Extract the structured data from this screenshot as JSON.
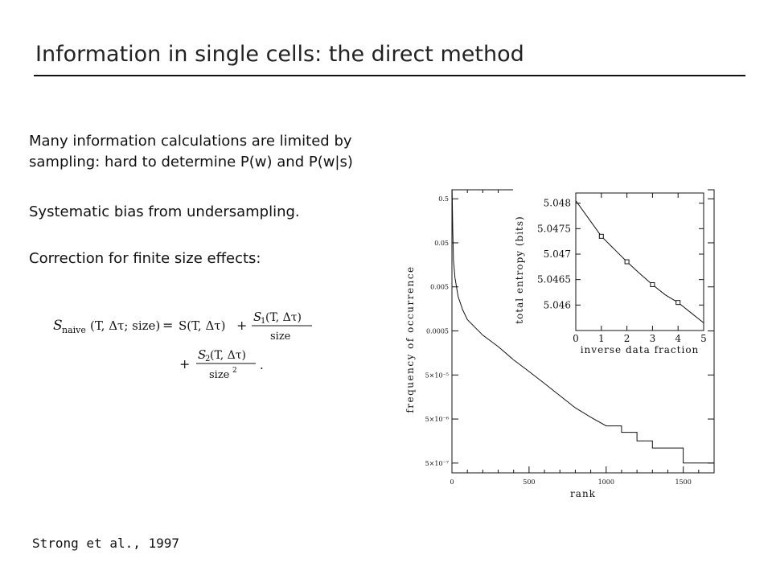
{
  "slide": {
    "title": "Information in single cells: the direct method",
    "paragraphs": [
      "Many information calculations are limited by",
      "sampling: hard to determine P(w) and P(w|s)",
      "Systematic bias from undersampling.",
      "Correction for finite size effects:"
    ],
    "citation": "Strong et al., 1997"
  },
  "equation": {
    "lhs_symbol": "S",
    "lhs_subscript": "naive",
    "lhs_args": "(T, Δτ; size)",
    "equals": "=",
    "term0": "S(T, Δτ)",
    "plus": "+",
    "term1_numerator_symbol": "S",
    "term1_numerator_subscript": "1",
    "term1_numerator_args": "(T, Δτ)",
    "term1_denominator": "size",
    "term2_numerator_symbol": "S",
    "term2_numerator_subscript": "2",
    "term2_numerator_args": "(T, Δτ)",
    "term2_denominator": "size",
    "term2_denominator_power": "2",
    "period": "."
  },
  "chart_data": [
    {
      "type": "line",
      "xlabel": "rank",
      "ylabel": "frequency of occurrence",
      "xlim": [
        0,
        1700
      ],
      "ylim": [
        3e-07,
        0.8
      ],
      "yscale": "log",
      "x_ticks": [
        "0",
        "500",
        "1000",
        "1500"
      ],
      "x_tick_values": [
        0,
        500,
        1000,
        1500
      ],
      "y_ticks": [
        "0.5",
        "0.05",
        "0.005",
        "0.0005",
        "5×10⁻⁵",
        "5×10⁻⁶",
        "5×10⁻⁷"
      ],
      "y_tick_values": [
        0.5,
        0.05,
        0.005,
        0.0005,
        5e-05,
        5e-06,
        5e-07
      ],
      "series": [
        {
          "x": [
            1,
            2,
            5,
            10,
            20,
            40,
            70,
            100,
            150,
            200,
            300,
            400,
            500,
            600,
            700,
            800,
            900,
            1000,
            1100,
            1200,
            1300,
            1400,
            1500,
            1600,
            1700
          ],
          "y": [
            0.8,
            0.5,
            0.1,
            0.02,
            0.008,
            0.003,
            0.0015,
            0.0009,
            0.0006,
            0.0004,
            0.00022,
            0.00011,
            6e-05,
            3.2e-05,
            1.7e-05,
            9e-06,
            5.5e-06,
            3.5e-06,
            2.5e-06,
            1.6e-06,
            1.1e-06,
            1.1e-06,
            5e-07,
            5e-07,
            5e-07
          ]
        }
      ]
    },
    {
      "type": "line",
      "xlabel": "inverse data fraction",
      "ylabel": "total entropy (bits)",
      "xlim": [
        0,
        5
      ],
      "ylim": [
        5.0455,
        5.0482
      ],
      "x_ticks": [
        "0",
        "1",
        "2",
        "3",
        "4",
        "5"
      ],
      "x_tick_values": [
        0,
        1,
        2,
        3,
        4,
        5
      ],
      "y_ticks": [
        "5.048",
        "5.0475",
        "5.047",
        "5.0465",
        "5.046"
      ],
      "y_tick_values": [
        5.048,
        5.0475,
        5.047,
        5.0465,
        5.046
      ],
      "points": {
        "x": [
          1,
          2,
          3,
          4
        ],
        "y": [
          5.04735,
          5.04685,
          5.0464,
          5.04605
        ]
      },
      "fit": {
        "x": [
          0,
          0.5,
          1,
          1.5,
          2,
          2.5,
          3,
          3.5,
          4,
          4.5,
          5
        ],
        "y": [
          5.04805,
          5.0477,
          5.04735,
          5.0471,
          5.04685,
          5.04662,
          5.0464,
          5.0462,
          5.04605,
          5.04585,
          5.04565
        ]
      }
    }
  ]
}
